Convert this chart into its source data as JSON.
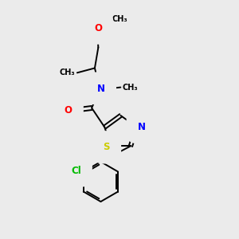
{
  "bg_color": "#ebebeb",
  "atom_colors": {
    "N": "#0000ff",
    "O": "#ff0000",
    "S": "#cccc00",
    "Cl": "#00bb00"
  },
  "bond_color": "#000000",
  "lw": 1.4,
  "fig_size": [
    3.0,
    3.0
  ],
  "dpi": 100,
  "xlim": [
    0,
    10
  ],
  "ylim": [
    0,
    10
  ]
}
